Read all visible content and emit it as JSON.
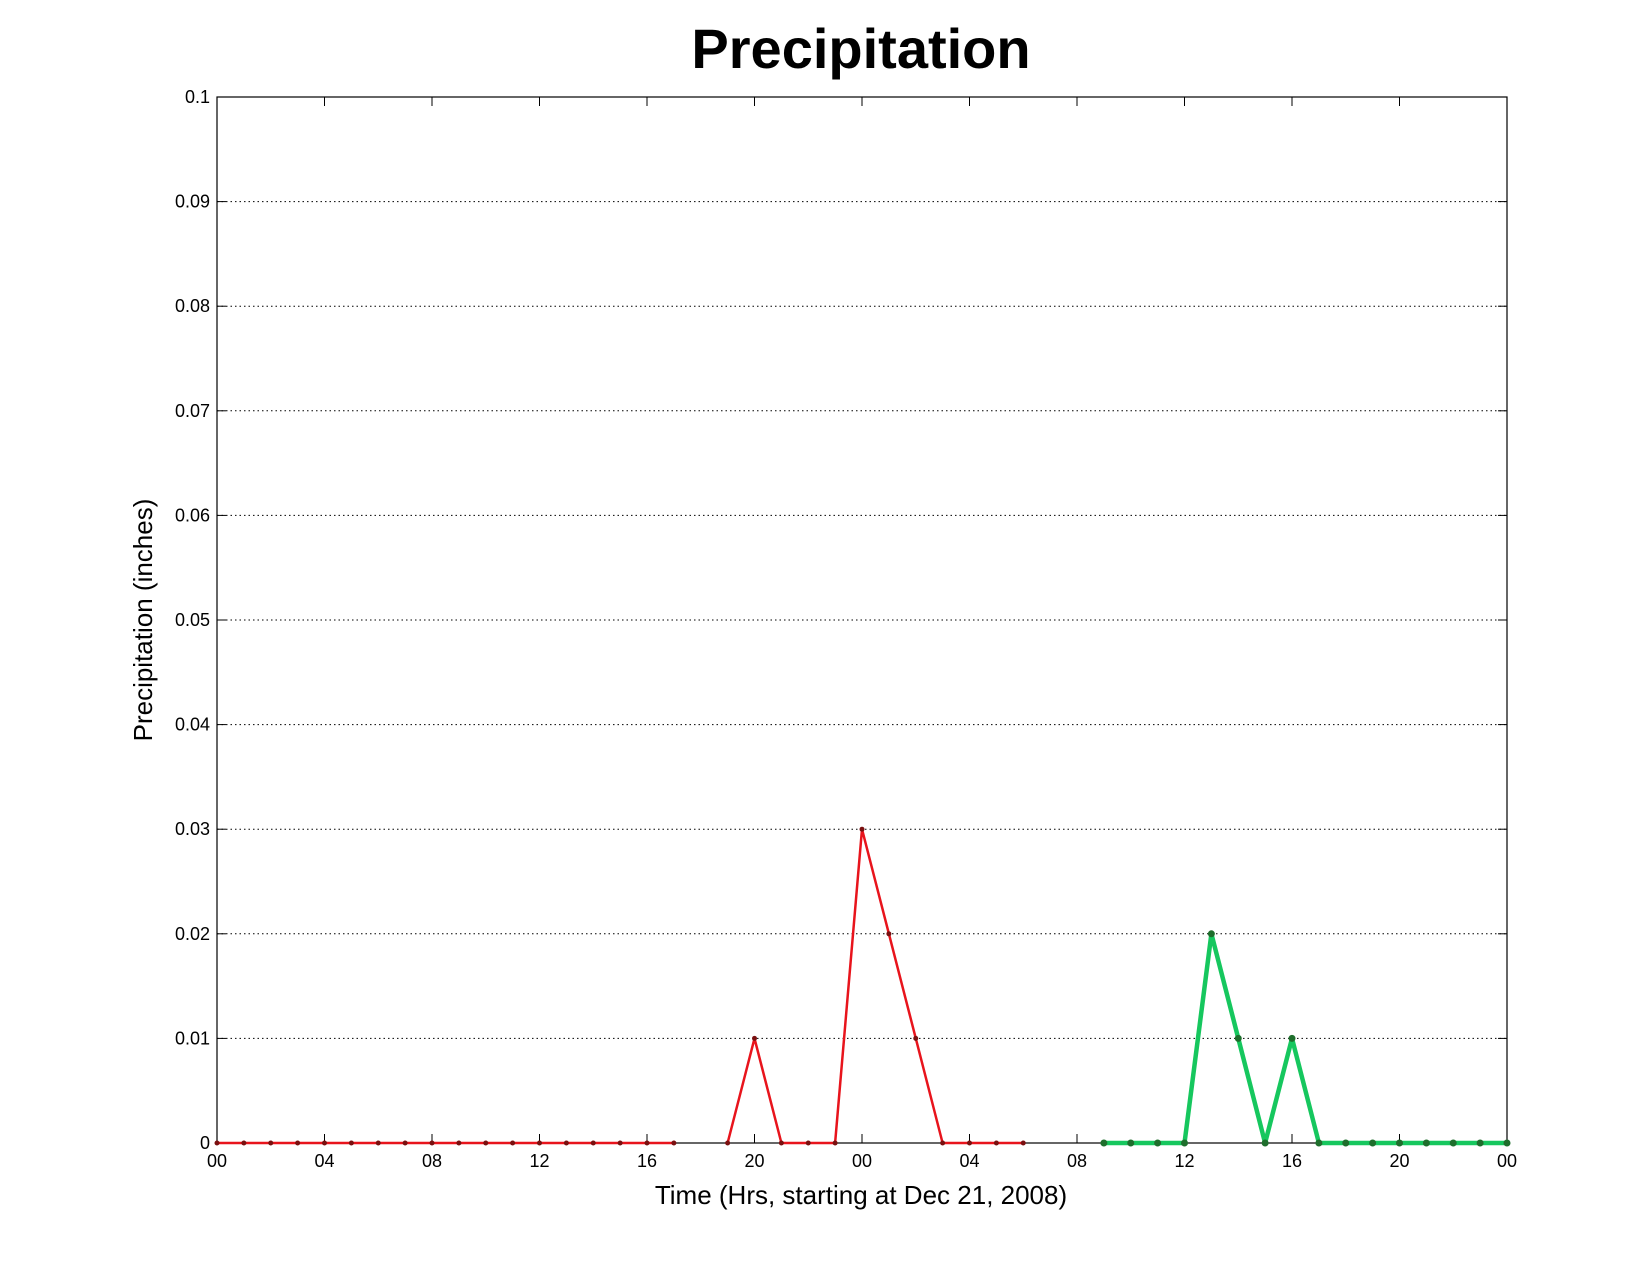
{
  "chart_data": {
    "type": "line",
    "title": "Precipitation",
    "xlabel": "Time (Hrs, starting at Dec 21, 2008)",
    "ylabel": "Precipitation (inches)",
    "xlim": [
      0,
      48
    ],
    "ylim": [
      0,
      0.1
    ],
    "x_tick_values": [
      0,
      4,
      8,
      12,
      16,
      20,
      24,
      28,
      32,
      36,
      40,
      44,
      48
    ],
    "x_tick_labels": [
      "00",
      "04",
      "08",
      "12",
      "16",
      "20",
      "00",
      "04",
      "08",
      "12",
      "16",
      "20",
      "00"
    ],
    "y_tick_values": [
      0,
      0.01,
      0.02,
      0.03,
      0.04,
      0.05,
      0.06,
      0.07,
      0.08,
      0.09,
      0.1
    ],
    "y_tick_labels": [
      "0",
      "0.01",
      "0.02",
      "0.03",
      "0.04",
      "0.05",
      "0.06",
      "0.07",
      "0.08",
      "0.09",
      "0.1"
    ],
    "grid": "horizontal dotted",
    "series": [
      {
        "color": "#e8141c",
        "marker_color": "#7a1010",
        "segments": [
          {
            "x": [
              0,
              1,
              2,
              3,
              4,
              5,
              6,
              7,
              8,
              9,
              10,
              11,
              12,
              13,
              14,
              15,
              16,
              17
            ],
            "y": [
              0,
              0,
              0,
              0,
              0,
              0,
              0,
              0,
              0,
              0,
              0,
              0,
              0,
              0,
              0,
              0,
              0,
              0
            ]
          },
          {
            "x": [
              19,
              20,
              21,
              22,
              23,
              24,
              25,
              26,
              27,
              28,
              29,
              30
            ],
            "y": [
              0,
              0.01,
              0,
              0,
              0,
              0.03,
              0.02,
              0.01,
              0,
              0,
              0,
              0
            ]
          }
        ]
      },
      {
        "color": "#16c75e",
        "marker_color": "#1e6e2c",
        "segments": [
          {
            "x": [
              33,
              34,
              35,
              36,
              37,
              38,
              39,
              40,
              41,
              42,
              43,
              44,
              45,
              46,
              47,
              48
            ],
            "y": [
              0,
              0,
              0,
              0,
              0.02,
              0.01,
              0,
              0.01,
              0,
              0,
              0,
              0,
              0,
              0,
              0,
              0
            ]
          }
        ]
      }
    ]
  }
}
